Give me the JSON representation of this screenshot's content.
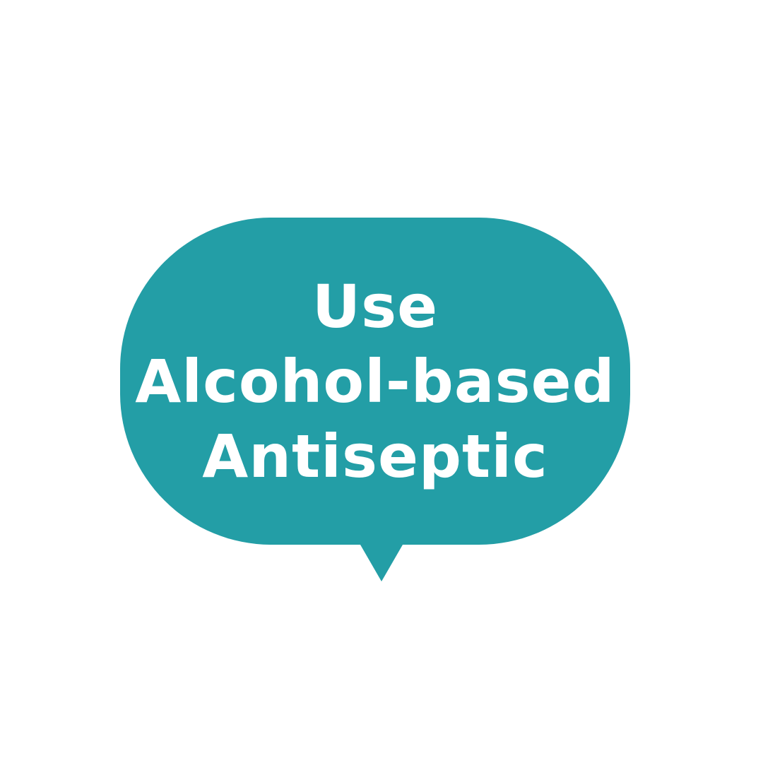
{
  "bubble": {
    "color": "#239ea6",
    "text_color": "#ffffff",
    "lines": [
      "Use",
      "Alcohol-based",
      "Antiseptic"
    ]
  },
  "background_color": "#ffffff"
}
